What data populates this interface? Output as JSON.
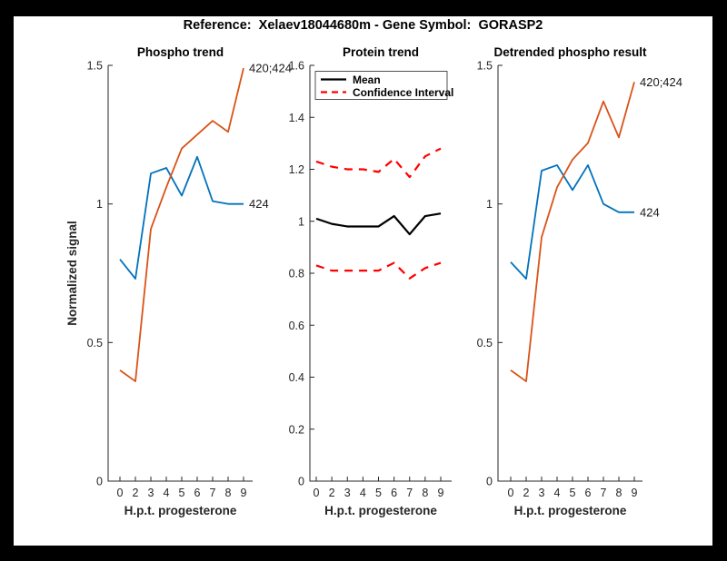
{
  "figure": {
    "title": "Reference:  Xelaev18044680m - Gene Symbol:  GORASP2",
    "background_color": "#000000",
    "canvas_color": "#ffffff"
  },
  "palette": {
    "blue": "#0072BD",
    "orange": "#D95319",
    "red": "#FF0000",
    "black": "#000000",
    "axis": "#262626"
  },
  "chart_data": [
    {
      "type": "line",
      "title": "Phospho trend",
      "xlabel": "H.p.t. progesterone",
      "ylabel": "Normalized signal",
      "ylim": [
        0,
        1.5
      ],
      "ytick_values": [
        0,
        0.5,
        1,
        1.5
      ],
      "ytick_labels": [
        "0",
        "0.5",
        "1",
        "1.5"
      ],
      "x_ticklabels": [
        "0",
        "2",
        "3",
        "4",
        "5",
        "6",
        "7",
        "8",
        "9"
      ],
      "grid": false,
      "series": [
        {
          "name": "phospho-424",
          "color": "blue",
          "dash": "solid",
          "values": [
            0.8,
            0.73,
            1.11,
            1.13,
            1.03,
            1.17,
            1.01,
            1.0,
            1.0
          ],
          "end_label": "424"
        },
        {
          "name": "phospho-420-424",
          "color": "orange",
          "dash": "solid",
          "values": [
            0.4,
            0.36,
            0.91,
            1.06,
            1.2,
            1.25,
            1.3,
            1.26,
            1.49
          ],
          "end_label": "420;424"
        }
      ]
    },
    {
      "type": "line",
      "title": "Protein trend",
      "xlabel": "H.p.t. progesterone",
      "ylabel": "",
      "ylim": [
        0,
        1.6
      ],
      "ytick_values": [
        0,
        0.2,
        0.4,
        0.6,
        0.8,
        1,
        1.2,
        1.4,
        1.6
      ],
      "ytick_labels": [
        "0",
        "0.2",
        "0.4",
        "0.6",
        "0.8",
        "1",
        "1.2",
        "1.4",
        "1.6"
      ],
      "x_ticklabels": [
        "0",
        "2",
        "3",
        "4",
        "5",
        "6",
        "7",
        "8",
        "9"
      ],
      "grid": false,
      "legend": {
        "position": "northwest",
        "entries": [
          {
            "label": "Mean",
            "color": "black",
            "dash": "solid"
          },
          {
            "label": "Confidence Interval",
            "color": "red",
            "dash": "dashed"
          }
        ]
      },
      "series": [
        {
          "name": "mean",
          "color": "black",
          "dash": "solid",
          "values": [
            1.01,
            0.99,
            0.98,
            0.98,
            0.98,
            1.02,
            0.95,
            1.02,
            1.03
          ]
        },
        {
          "name": "confidence-interval-upper",
          "color": "red",
          "dash": "dashed",
          "values": [
            1.23,
            1.21,
            1.2,
            1.2,
            1.19,
            1.24,
            1.17,
            1.25,
            1.28
          ]
        },
        {
          "name": "confidence-interval-lower",
          "color": "red",
          "dash": "dashed",
          "values": [
            0.83,
            0.81,
            0.81,
            0.81,
            0.81,
            0.84,
            0.78,
            0.82,
            0.84
          ]
        }
      ]
    },
    {
      "type": "line",
      "title": "Detrended phospho result",
      "xlabel": "H.p.t. progesterone",
      "ylabel": "",
      "ylim": [
        0,
        1.5
      ],
      "ytick_values": [
        0,
        0.5,
        1,
        1.5
      ],
      "ytick_labels": [
        "0",
        "0.5",
        "1",
        "1.5"
      ],
      "x_ticklabels": [
        "0",
        "2",
        "3",
        "4",
        "5",
        "6",
        "7",
        "8",
        "9"
      ],
      "grid": false,
      "series": [
        {
          "name": "detrended-424",
          "color": "blue",
          "dash": "solid",
          "values": [
            0.79,
            0.73,
            1.12,
            1.14,
            1.05,
            1.14,
            1.0,
            0.97,
            0.97
          ],
          "end_label": "424"
        },
        {
          "name": "detrended-420-424",
          "color": "orange",
          "dash": "solid",
          "values": [
            0.4,
            0.36,
            0.88,
            1.06,
            1.16,
            1.22,
            1.37,
            1.24,
            1.44
          ],
          "end_label": "420;424"
        }
      ]
    }
  ]
}
